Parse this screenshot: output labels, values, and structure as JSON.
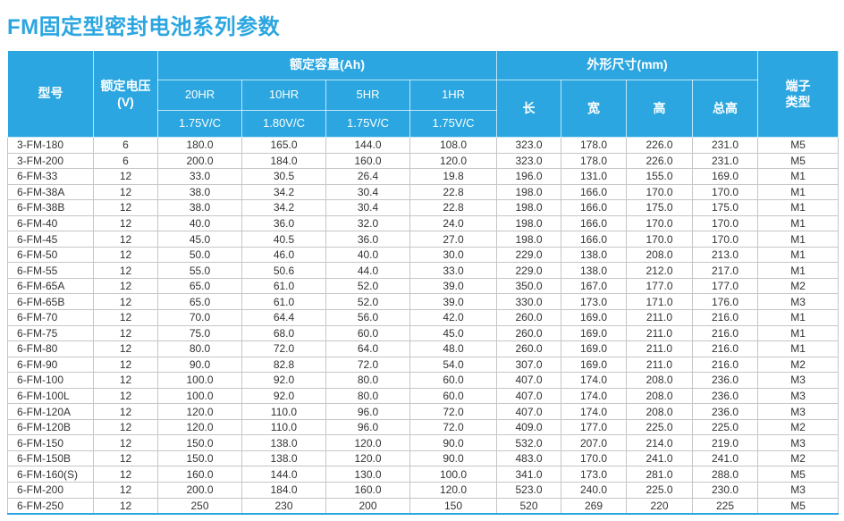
{
  "colors": {
    "accent": "#2ba6e0",
    "grid_line": "#c6c6c6",
    "body_text": "#333333",
    "header_text": "#ffffff"
  },
  "page_title": "FM固定型密封电池系列参数",
  "table": {
    "header": {
      "model": "型号",
      "voltage_line1": "额定电压",
      "voltage_line2": "(V)",
      "capacity_group": "额定容量(Ah)",
      "capacity_cols": [
        {
          "rate": "20HR",
          "cutoff": "1.75V/C"
        },
        {
          "rate": "10HR",
          "cutoff": "1.80V/C"
        },
        {
          "rate": "5HR",
          "cutoff": "1.75V/C"
        },
        {
          "rate": "1HR",
          "cutoff": "1.75V/C"
        }
      ],
      "dimensions_group": "外形尺寸(mm)",
      "dimension_cols": [
        "长",
        "宽",
        "高",
        "总高"
      ],
      "terminal_line1": "端子",
      "terminal_line2": "类型"
    },
    "column_keys": [
      "model",
      "rated-voltage",
      "capacity-20hr",
      "capacity-10hr",
      "capacity-5hr",
      "capacity-1hr",
      "length",
      "width",
      "height",
      "total-height",
      "terminal-type"
    ],
    "rows": [
      [
        "3-FM-180",
        "6",
        "180.0",
        "165.0",
        "144.0",
        "108.0",
        "323.0",
        "178.0",
        "226.0",
        "231.0",
        "M5"
      ],
      [
        "3-FM-200",
        "6",
        "200.0",
        "184.0",
        "160.0",
        "120.0",
        "323.0",
        "178.0",
        "226.0",
        "231.0",
        "M5"
      ],
      [
        "6-FM-33",
        "12",
        "33.0",
        "30.5",
        "26.4",
        "19.8",
        "196.0",
        "131.0",
        "155.0",
        "169.0",
        "M1"
      ],
      [
        "6-FM-38A",
        "12",
        "38.0",
        "34.2",
        "30.4",
        "22.8",
        "198.0",
        "166.0",
        "170.0",
        "170.0",
        "M1"
      ],
      [
        "6-FM-38B",
        "12",
        "38.0",
        "34.2",
        "30.4",
        "22.8",
        "198.0",
        "166.0",
        "175.0",
        "175.0",
        "M1"
      ],
      [
        "6-FM-40",
        "12",
        "40.0",
        "36.0",
        "32.0",
        "24.0",
        "198.0",
        "166.0",
        "170.0",
        "170.0",
        "M1"
      ],
      [
        "6-FM-45",
        "12",
        "45.0",
        "40.5",
        "36.0",
        "27.0",
        "198.0",
        "166.0",
        "170.0",
        "170.0",
        "M1"
      ],
      [
        "6-FM-50",
        "12",
        "50.0",
        "46.0",
        "40.0",
        "30.0",
        "229.0",
        "138.0",
        "208.0",
        "213.0",
        "M1"
      ],
      [
        "6-FM-55",
        "12",
        "55.0",
        "50.6",
        "44.0",
        "33.0",
        "229.0",
        "138.0",
        "212.0",
        "217.0",
        "M1"
      ],
      [
        "6-FM-65A",
        "12",
        "65.0",
        "61.0",
        "52.0",
        "39.0",
        "350.0",
        "167.0",
        "177.0",
        "177.0",
        "M2"
      ],
      [
        "6-FM-65B",
        "12",
        "65.0",
        "61.0",
        "52.0",
        "39.0",
        "330.0",
        "173.0",
        "171.0",
        "176.0",
        "M3"
      ],
      [
        "6-FM-70",
        "12",
        "70.0",
        "64.4",
        "56.0",
        "42.0",
        "260.0",
        "169.0",
        "211.0",
        "216.0",
        "M1"
      ],
      [
        "6-FM-75",
        "12",
        "75.0",
        "68.0",
        "60.0",
        "45.0",
        "260.0",
        "169.0",
        "211.0",
        "216.0",
        "M1"
      ],
      [
        "6-FM-80",
        "12",
        "80.0",
        "72.0",
        "64.0",
        "48.0",
        "260.0",
        "169.0",
        "211.0",
        "216.0",
        "M1"
      ],
      [
        "6-FM-90",
        "12",
        "90.0",
        "82.8",
        "72.0",
        "54.0",
        "307.0",
        "169.0",
        "211.0",
        "216.0",
        "M2"
      ],
      [
        "6-FM-100",
        "12",
        "100.0",
        "92.0",
        "80.0",
        "60.0",
        "407.0",
        "174.0",
        "208.0",
        "236.0",
        "M3"
      ],
      [
        "6-FM-100L",
        "12",
        "100.0",
        "92.0",
        "80.0",
        "60.0",
        "407.0",
        "174.0",
        "208.0",
        "236.0",
        "M3"
      ],
      [
        "6-FM-120A",
        "12",
        "120.0",
        "110.0",
        "96.0",
        "72.0",
        "407.0",
        "174.0",
        "208.0",
        "236.0",
        "M3"
      ],
      [
        "6-FM-120B",
        "12",
        "120.0",
        "110.0",
        "96.0",
        "72.0",
        "409.0",
        "177.0",
        "225.0",
        "225.0",
        "M2"
      ],
      [
        "6-FM-150",
        "12",
        "150.0",
        "138.0",
        "120.0",
        "90.0",
        "532.0",
        "207.0",
        "214.0",
        "219.0",
        "M3"
      ],
      [
        "6-FM-150B",
        "12",
        "150.0",
        "138.0",
        "120.0",
        "90.0",
        "483.0",
        "170.0",
        "241.0",
        "241.0",
        "M2"
      ],
      [
        "6-FM-160(S)",
        "12",
        "160.0",
        "144.0",
        "130.0",
        "100.0",
        "341.0",
        "173.0",
        "281.0",
        "288.0",
        "M5"
      ],
      [
        "6-FM-200",
        "12",
        "200.0",
        "184.0",
        "160.0",
        "120.0",
        "523.0",
        "240.0",
        "225.0",
        "230.0",
        "M3"
      ],
      [
        "6-FM-250",
        "12",
        "250",
        "230",
        "200",
        "150",
        "520",
        "269",
        "220",
        "225",
        "M5"
      ]
    ]
  }
}
